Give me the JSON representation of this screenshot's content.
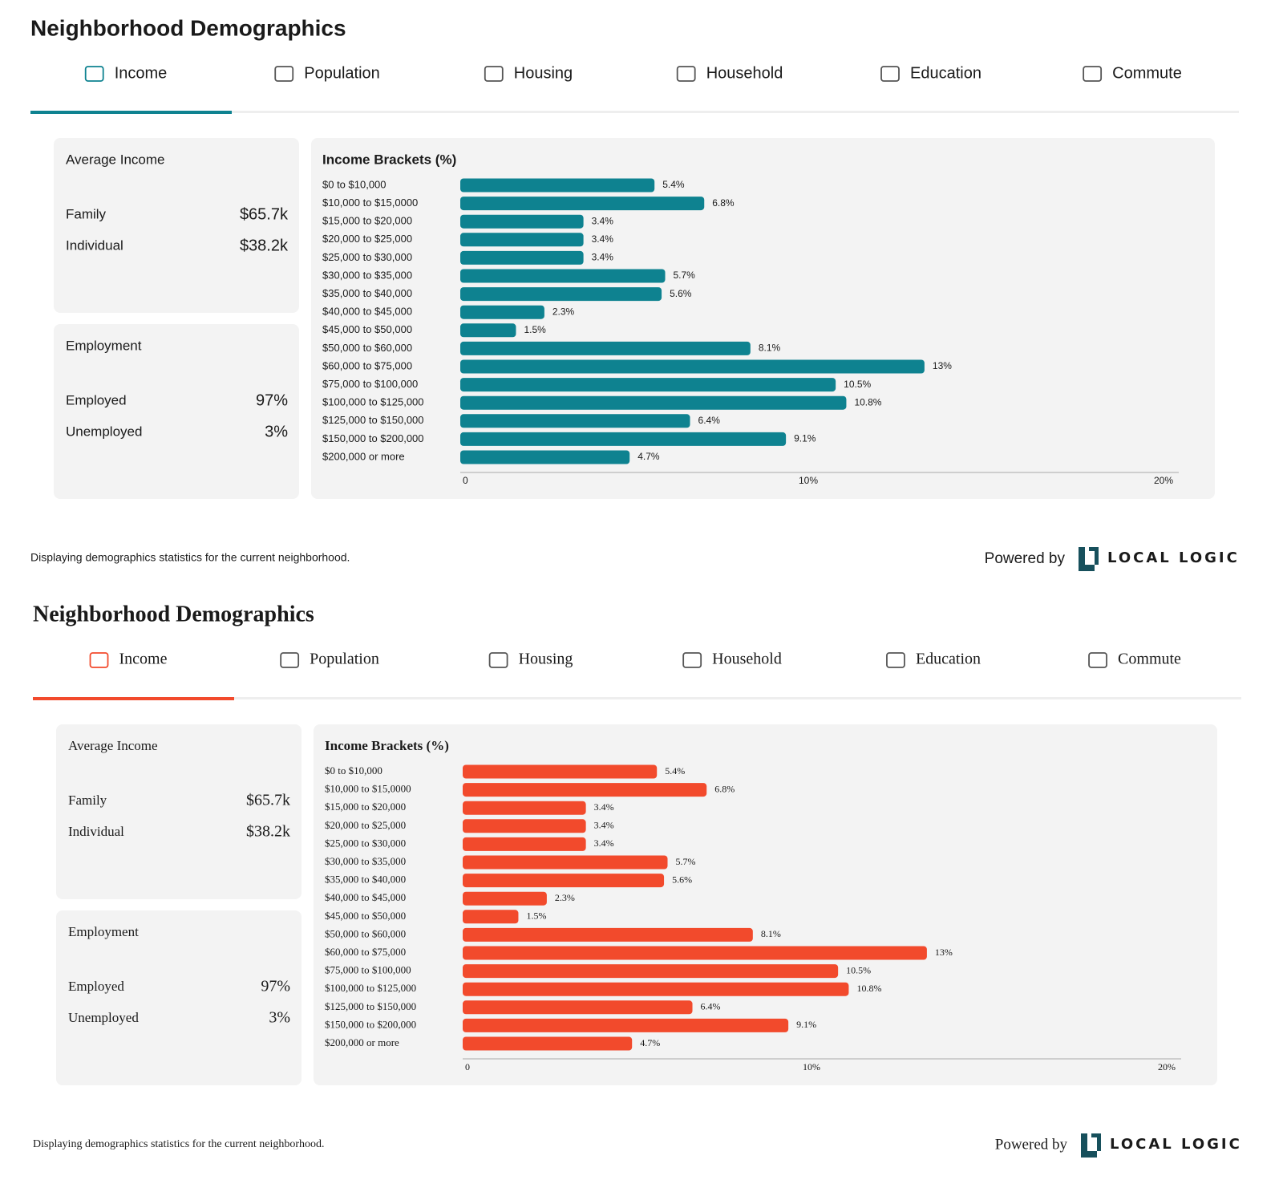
{
  "widgets": [
    {
      "title": "Neighborhood Demographics",
      "tabs": [
        "Income",
        "Population",
        "Housing",
        "Household",
        "Education",
        "Commute"
      ],
      "average_income": {
        "label": "Average Income",
        "rows": [
          {
            "label": "Family",
            "value": "$65.7k"
          },
          {
            "label": "Individual",
            "value": "$38.2k"
          }
        ]
      },
      "employment": {
        "label": "Employment",
        "rows": [
          {
            "label": "Employed",
            "value": "97%"
          },
          {
            "label": "Unemployed",
            "value": "3%"
          }
        ]
      },
      "footer": "Displaying demographics statistics for the current neighborhood.",
      "powered_by": "Powered by",
      "logo": "LOCAL LOGIC"
    },
    {
      "title": "Neighborhood Demographics",
      "tabs": [
        "Income",
        "Population",
        "Housing",
        "Household",
        "Education",
        "Commute"
      ],
      "average_income": {
        "label": "Average Income",
        "rows": [
          {
            "label": "Family",
            "value": "$65.7k"
          },
          {
            "label": "Individual",
            "value": "$38.2k"
          }
        ]
      },
      "employment": {
        "label": "Employment",
        "rows": [
          {
            "label": "Employed",
            "value": "97%"
          },
          {
            "label": "Unemployed",
            "value": "3%"
          }
        ]
      },
      "footer": "Displaying demographics statistics for the current neighborhood.",
      "powered_by": "Powered by",
      "logo": "LOCAL LOGIC"
    }
  ],
  "chart_data": [
    {
      "type": "bar",
      "orientation": "horizontal",
      "title": "Income Brackets (%)",
      "color": "#0e8290",
      "categories": [
        "$0 to $10,000",
        "$10,000 to $15,0000",
        "$15,000 to $20,000",
        "$20,000 to $25,000",
        "$25,000 to $30,000",
        "$30,000 to $35,000",
        "$35,000 to $40,000",
        "$40,000 to $45,000",
        "$45,000 to $50,000",
        "$50,000 to $60,000",
        "$60,000 to $75,000",
        "$75,000 to $100,000",
        "$100,000 to $125,000",
        "$125,000 to $150,000",
        "$150,000 to $200,000",
        "$200,000 or more"
      ],
      "values": [
        5.4,
        6.8,
        3.4,
        3.4,
        3.4,
        5.7,
        5.6,
        2.3,
        1.5,
        8.1,
        13,
        10.5,
        10.8,
        6.4,
        9.1,
        4.7
      ],
      "value_labels": [
        "5.4%",
        "6.8%",
        "3.4%",
        "3.4%",
        "3.4%",
        "5.7%",
        "5.6%",
        "2.3%",
        "1.5%",
        "8.1%",
        "13%",
        "10.5%",
        "10.8%",
        "6.4%",
        "9.1%",
        "4.7%"
      ],
      "xlim": [
        0,
        20
      ],
      "xticks": [
        0,
        {
          "value": 10,
          "label": "10%"
        },
        {
          "value": 20,
          "label": "20%"
        }
      ]
    },
    {
      "type": "bar",
      "orientation": "horizontal",
      "title": "Income Brackets (%)",
      "color": "#f24a2c",
      "categories": [
        "$0 to $10,000",
        "$10,000 to $15,0000",
        "$15,000 to $20,000",
        "$20,000 to $25,000",
        "$25,000 to $30,000",
        "$30,000 to $35,000",
        "$35,000 to $40,000",
        "$40,000 to $45,000",
        "$45,000 to $50,000",
        "$50,000 to $60,000",
        "$60,000 to $75,000",
        "$75,000 to $100,000",
        "$100,000 to $125,000",
        "$125,000 to $150,000",
        "$150,000 to $200,000",
        "$200,000 or more"
      ],
      "values": [
        5.4,
        6.8,
        3.4,
        3.4,
        3.4,
        5.7,
        5.6,
        2.3,
        1.5,
        8.1,
        13,
        10.5,
        10.8,
        6.4,
        9.1,
        4.7
      ],
      "value_labels": [
        "5.4%",
        "6.8%",
        "3.4%",
        "3.4%",
        "3.4%",
        "5.7%",
        "5.6%",
        "2.3%",
        "1.5%",
        "8.1%",
        "13%",
        "10.5%",
        "10.8%",
        "6.4%",
        "9.1%",
        "4.7%"
      ],
      "xlim": [
        0,
        20
      ],
      "xticks": [
        0,
        {
          "value": 10,
          "label": "10%"
        },
        {
          "value": 20,
          "label": "20%"
        }
      ]
    }
  ]
}
